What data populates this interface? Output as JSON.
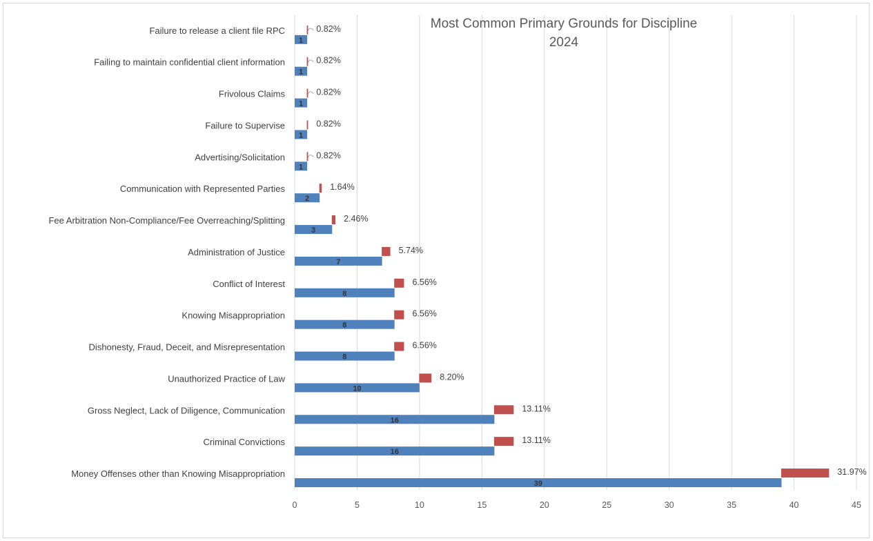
{
  "chart_data": {
    "type": "bar",
    "orientation": "horizontal",
    "title": "Most Common Primary Grounds for Discipline",
    "subtitle": "2024",
    "xlabel": "",
    "ylabel": "",
    "xlim": [
      0,
      45
    ],
    "x_ticks": [
      0,
      5,
      10,
      15,
      20,
      25,
      30,
      35,
      40,
      45
    ],
    "grid": "vertical",
    "legend": "none",
    "colors": {
      "bar": "#4f81bd",
      "pct_bar": "#c0504d",
      "grid": "#d9d9d9",
      "connector": "#a6a6a6"
    },
    "categories": [
      "Failure to release a client file RPC",
      "Failing to maintain confidential client information",
      "Frivolous Claims",
      "Failure to Supervise",
      "Advertising/Solicitation",
      "Communication with Represented Parties",
      "Fee Arbitration Non-Compliance/Fee Overreaching/Splitting",
      "Administration of Justice",
      "Conflict of Interest",
      "Knowing Misappropriation",
      "Dishonesty, Fraud, Deceit, and Misrepresentation",
      "Unauthorized Practice of Law",
      "Gross Neglect, Lack of Diligence, Communication",
      "Criminal Convictions",
      "Money Offenses other than Knowing Misappropriation"
    ],
    "series": [
      {
        "values": [
          1,
          1,
          1,
          1,
          1,
          2,
          3,
          7,
          8,
          8,
          8,
          10,
          16,
          16,
          39
        ]
      },
      {
        "values": [
          0.82,
          0.82,
          0.82,
          0.82,
          0.82,
          1.64,
          2.46,
          5.74,
          6.56,
          6.56,
          6.56,
          8.2,
          13.11,
          13.11,
          31.97
        ]
      }
    ],
    "value_labels": [
      "1",
      "1",
      "1",
      "1",
      "1",
      "2",
      "3",
      "7",
      "8",
      "8",
      "8",
      "10",
      "16",
      "16",
      "39"
    ],
    "percent_labels": [
      "0.82%",
      "0.82%",
      "0.82%",
      "0.82%",
      "0.82%",
      "1.64%",
      "2.46%",
      "5.74%",
      "6.56%",
      "6.56%",
      "6.56%",
      "8.20%",
      "13.11%",
      "13.11%",
      "31.97%"
    ],
    "percent_label_connector": [
      true,
      true,
      true,
      false,
      true,
      false,
      false,
      false,
      false,
      false,
      false,
      false,
      false,
      false,
      false
    ]
  }
}
